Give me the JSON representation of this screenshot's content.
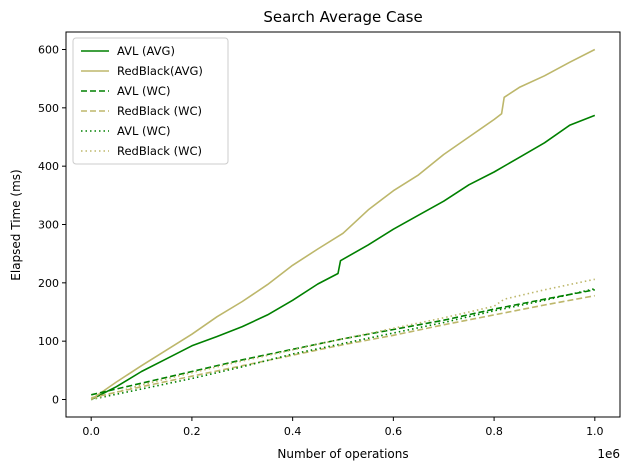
{
  "chart_data": {
    "type": "line",
    "title": "Search Average Case",
    "xlabel": "Number of operations",
    "ylabel": "Elapsed Time (ms)",
    "x_offset_label": "1e6",
    "xlim": [
      -0.05,
      1.05
    ],
    "ylim": [
      -30,
      630
    ],
    "x_ticks": [
      0.0,
      0.2,
      0.4,
      0.6,
      0.8,
      1.0
    ],
    "x_tick_labels": [
      "0.0",
      "0.2",
      "0.4",
      "0.6",
      "0.8",
      "1.0"
    ],
    "y_ticks": [
      0,
      100,
      200,
      300,
      400,
      500,
      600
    ],
    "y_tick_labels": [
      "0",
      "100",
      "200",
      "300",
      "400",
      "500",
      "600"
    ],
    "grid": false,
    "legend_position": "top-left",
    "series": [
      {
        "name": "AVL (AVG)",
        "color": "#008000",
        "dash": "solid",
        "x": [
          0,
          0.05,
          0.1,
          0.15,
          0.2,
          0.25,
          0.3,
          0.35,
          0.4,
          0.45,
          0.49,
          0.495,
          0.55,
          0.6,
          0.65,
          0.7,
          0.75,
          0.8,
          0.85,
          0.9,
          0.95,
          1.0
        ],
        "y": [
          0,
          22,
          48,
          70,
          92,
          108,
          125,
          145,
          170,
          198,
          216,
          238,
          265,
          292,
          316,
          340,
          368,
          390,
          415,
          440,
          470,
          487
        ]
      },
      {
        "name": "RedBlack(AVG)",
        "color": "#bdb76b",
        "dash": "solid",
        "x": [
          0,
          0.05,
          0.1,
          0.15,
          0.2,
          0.25,
          0.3,
          0.35,
          0.4,
          0.45,
          0.5,
          0.55,
          0.6,
          0.65,
          0.7,
          0.75,
          0.8,
          0.815,
          0.82,
          0.85,
          0.9,
          0.95,
          1.0
        ],
        "y": [
          0,
          30,
          58,
          85,
          112,
          142,
          168,
          197,
          230,
          258,
          285,
          325,
          358,
          385,
          420,
          450,
          480,
          490,
          518,
          535,
          555,
          578,
          600
        ]
      },
      {
        "name": "AVL (WC)",
        "color": "#008000",
        "dash": "dashed",
        "x": [
          0,
          0.1,
          0.2,
          0.3,
          0.4,
          0.5,
          0.6,
          0.7,
          0.8,
          0.9,
          1.0
        ],
        "y": [
          8,
          28,
          48,
          68,
          86,
          104,
          120,
          136,
          155,
          172,
          188
        ]
      },
      {
        "name": "RedBlack (WC)",
        "color": "#bdb76b",
        "dash": "dashed",
        "x": [
          0,
          0.1,
          0.2,
          0.3,
          0.4,
          0.5,
          0.6,
          0.7,
          0.8,
          0.9,
          1.0
        ],
        "y": [
          3,
          22,
          40,
          58,
          76,
          94,
          110,
          128,
          145,
          162,
          178
        ]
      },
      {
        "name": "AVL (WC)",
        "color": "#008000",
        "dash": "dotted",
        "x": [
          0,
          0.1,
          0.2,
          0.3,
          0.4,
          0.5,
          0.6,
          0.7,
          0.8,
          0.9,
          1.0
        ],
        "y": [
          0,
          18,
          36,
          56,
          78,
          96,
          114,
          132,
          152,
          170,
          190
        ]
      },
      {
        "name": "RedBlack (WC)",
        "color": "#bdb76b",
        "dash": "dotted",
        "x": [
          0,
          0.1,
          0.2,
          0.3,
          0.4,
          0.5,
          0.6,
          0.7,
          0.8,
          0.82,
          0.9,
          1.0
        ],
        "y": [
          0,
          25,
          46,
          66,
          85,
          104,
          122,
          140,
          160,
          172,
          188,
          206
        ]
      }
    ]
  }
}
